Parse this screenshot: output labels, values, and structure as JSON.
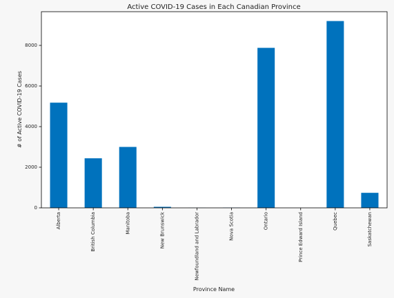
{
  "chart_data": {
    "type": "bar",
    "title": "Active COVID-19 Cases in Each Canadian Province",
    "xlabel": "Province Name",
    "ylabel": "# of Active COVID-19 Cases",
    "categories": [
      "Alberta",
      "British Columbia",
      "Manitoba",
      "New Brunswick",
      "Newfoundland and Labrador",
      "Nova Scotia",
      "Ontario",
      "Prince Edward Island",
      "Quebec",
      "Saskatchewan"
    ],
    "values": [
      5180,
      2440,
      3000,
      50,
      5,
      10,
      7880,
      0,
      9200,
      740
    ],
    "ylim": [
      0,
      9660
    ],
    "yticks": [
      0,
      2000,
      4000,
      6000,
      8000
    ],
    "grid": false,
    "legend": "none",
    "bar_color": "#0072bd"
  }
}
